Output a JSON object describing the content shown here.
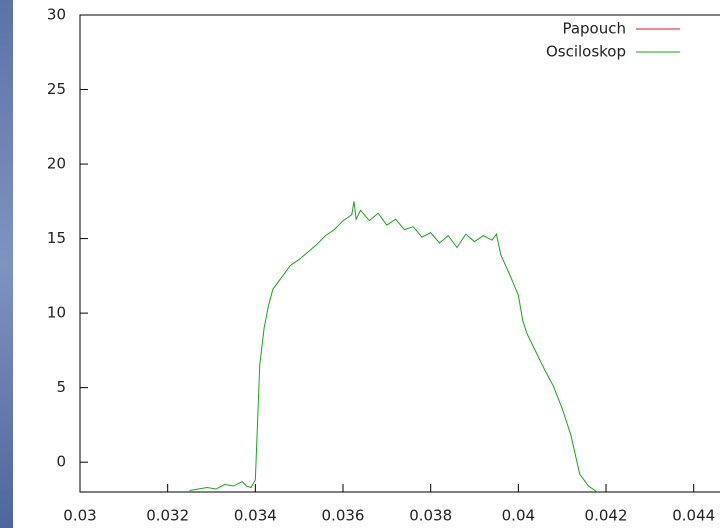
{
  "chart_data": {
    "type": "line",
    "x": [
      0.0325,
      0.0327,
      0.0329,
      0.0331,
      0.0333,
      0.0335,
      0.0337,
      0.0338,
      0.0339,
      0.034,
      0.0341,
      0.0342,
      0.0343,
      0.0344,
      0.0346,
      0.0348,
      0.035,
      0.0352,
      0.0354,
      0.0356,
      0.0358,
      0.036,
      0.0362,
      0.03625,
      0.0363,
      0.0364,
      0.0366,
      0.0368,
      0.037,
      0.0372,
      0.0374,
      0.0376,
      0.0378,
      0.038,
      0.0382,
      0.0384,
      0.0386,
      0.0388,
      0.039,
      0.0392,
      0.0394,
      0.0395,
      0.0396,
      0.0398,
      0.04,
      0.0401,
      0.0402,
      0.0404,
      0.0406,
      0.0408,
      0.041,
      0.0412,
      0.0413,
      0.0414,
      0.0416,
      0.0418
    ],
    "series": [
      {
        "name": "Papouch",
        "color": "#e01010",
        "values": [
          null,
          null,
          null,
          null,
          null,
          null,
          null,
          null,
          null,
          null,
          null,
          null,
          null,
          null,
          null,
          null,
          null,
          null,
          null,
          null,
          null,
          null,
          null,
          null,
          null,
          null,
          null,
          null,
          null,
          null,
          null,
          null,
          null,
          null,
          null,
          null,
          null,
          null,
          null,
          null,
          null,
          null,
          null,
          null,
          null,
          null,
          null,
          null,
          null,
          null,
          null,
          null,
          null,
          null,
          null,
          null
        ]
      },
      {
        "name": "Osciloskop",
        "color": "#1aa51a",
        "values": [
          -1.9,
          -1.8,
          -1.7,
          -1.8,
          -1.5,
          -1.6,
          -1.3,
          -1.6,
          -1.7,
          -1.2,
          6.5,
          9.0,
          10.5,
          11.6,
          12.4,
          13.2,
          13.6,
          14.1,
          14.6,
          15.2,
          15.6,
          16.2,
          16.6,
          17.5,
          16.3,
          16.9,
          16.2,
          16.7,
          15.9,
          16.3,
          15.6,
          15.8,
          15.1,
          15.4,
          14.7,
          15.2,
          14.4,
          15.3,
          14.8,
          15.2,
          14.9,
          15.3,
          13.9,
          12.6,
          11.2,
          9.5,
          8.6,
          7.4,
          6.2,
          5.1,
          3.6,
          1.8,
          0.5,
          -0.8,
          -1.6,
          -2
        ]
      }
    ],
    "xlim": [
      0.03,
      0.0446
    ],
    "xticks": [
      0.03,
      0.032,
      0.034,
      0.036,
      0.038,
      0.04,
      0.042,
      0.044
    ],
    "ylim": [
      -2,
      30
    ],
    "yticks": [
      0,
      5,
      10,
      15,
      20,
      25,
      30
    ],
    "legend": "top-right"
  }
}
